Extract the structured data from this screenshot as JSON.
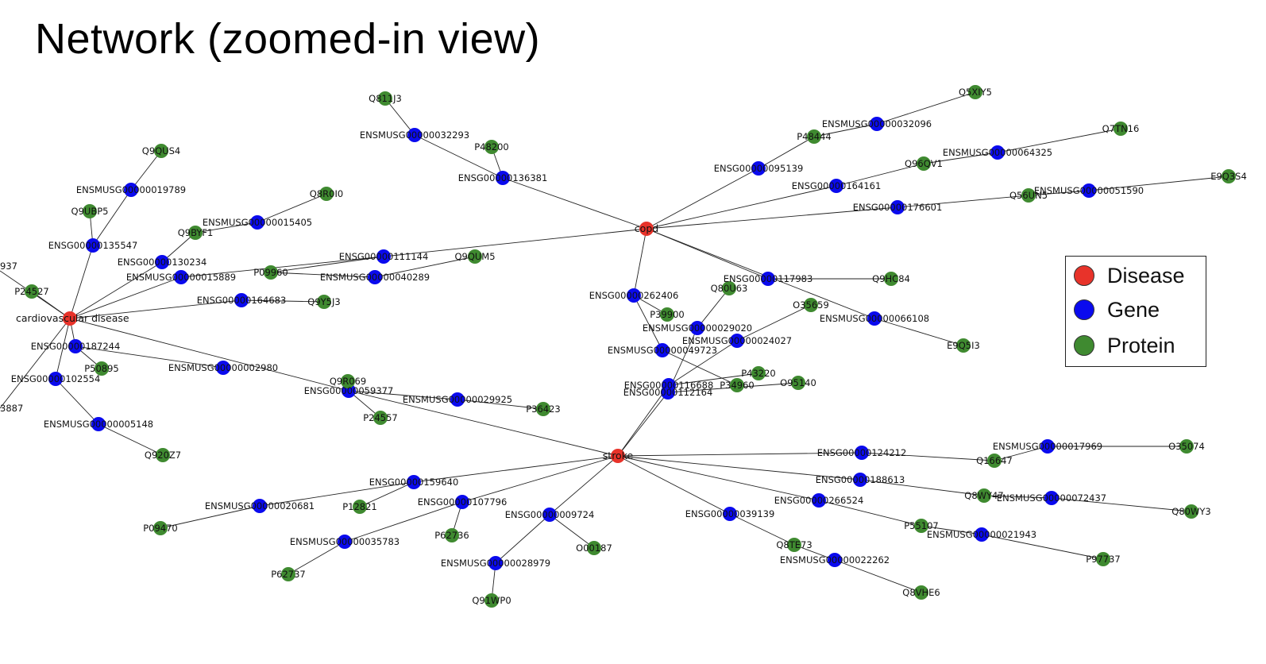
{
  "title": "Network (zoomed-in view)",
  "legend": {
    "items": [
      {
        "label": "Disease",
        "color": "#e8332a"
      },
      {
        "label": "Gene",
        "color": "#0a0aee"
      },
      {
        "label": "Protein",
        "color": "#3f8a30"
      }
    ]
  },
  "nodes": [
    {
      "id": "copd",
      "label": "copd",
      "type": "disease"
    },
    {
      "id": "stroke",
      "label": "stroke",
      "type": "disease"
    },
    {
      "id": "cvd",
      "label": "cardiovascular disease",
      "type": "disease"
    },
    {
      "id": "g_136381",
      "label": "ENSG00000136381",
      "type": "gene"
    },
    {
      "id": "g_m32293",
      "label": "ENSMUSG00000032293",
      "type": "gene"
    },
    {
      "id": "p_Q811J3",
      "label": "Q811J3",
      "type": "protein"
    },
    {
      "id": "p_P48200",
      "label": "P48200",
      "type": "protein"
    },
    {
      "id": "g_95139",
      "label": "ENSG00000095139",
      "type": "gene"
    },
    {
      "id": "g_m32096",
      "label": "ENSMUSG00000032096",
      "type": "gene"
    },
    {
      "id": "p_P48444",
      "label": "P48444",
      "type": "protein"
    },
    {
      "id": "p_Q5XIY5",
      "label": "Q5XIY5",
      "type": "protein"
    },
    {
      "id": "g_164161",
      "label": "ENSG00000164161",
      "type": "gene"
    },
    {
      "id": "p_Q96QV1",
      "label": "Q96QV1",
      "type": "protein"
    },
    {
      "id": "g_m64325",
      "label": "ENSMUSG00000064325",
      "type": "gene"
    },
    {
      "id": "p_Q7TN16",
      "label": "Q7TN16",
      "type": "protein"
    },
    {
      "id": "g_176601",
      "label": "ENSG00000176601",
      "type": "gene"
    },
    {
      "id": "p_Q56UN5",
      "label": "Q56UN5",
      "type": "protein"
    },
    {
      "id": "g_m51590",
      "label": "ENSMUSG00000051590",
      "type": "gene"
    },
    {
      "id": "p_E9Q3S4",
      "label": "E9Q3S4",
      "type": "protein"
    },
    {
      "id": "g_111144",
      "label": "ENSG00000111144",
      "type": "gene"
    },
    {
      "id": "g_m40289",
      "label": "ENSMUSG00000040289",
      "type": "gene"
    },
    {
      "id": "p_Q9QUM5",
      "label": "Q9QUM5",
      "type": "protein"
    },
    {
      "id": "p_P09960",
      "label": "P09960",
      "type": "protein"
    },
    {
      "id": "g_117983",
      "label": "ENSG00000117983",
      "type": "gene"
    },
    {
      "id": "p_Q9HC84",
      "label": "Q9HC84",
      "type": "protein"
    },
    {
      "id": "g_m66108",
      "label": "ENSMUSG00000066108",
      "type": "gene"
    },
    {
      "id": "p_E9Q5I3",
      "label": "E9Q5I3",
      "type": "protein"
    },
    {
      "id": "g_262406",
      "label": "ENSG00000262406",
      "type": "gene"
    },
    {
      "id": "p_P39900",
      "label": "P39900",
      "type": "protein"
    },
    {
      "id": "g_m49723",
      "label": "ENSMUSG00000049723",
      "type": "gene"
    },
    {
      "id": "g_m29020",
      "label": "ENSMUSG00000029020",
      "type": "gene"
    },
    {
      "id": "p_Q80U63",
      "label": "Q80U63",
      "type": "protein"
    },
    {
      "id": "g_m24027",
      "label": "ENSMUSG00000024027",
      "type": "gene"
    },
    {
      "id": "p_O35659",
      "label": "O35659",
      "type": "protein"
    },
    {
      "id": "g_116688",
      "label": "ENSG00000116688",
      "type": "gene"
    },
    {
      "id": "g_112164",
      "label": "ENSG00000112164",
      "type": "gene"
    },
    {
      "id": "p_P34960",
      "label": "P34960",
      "type": "protein"
    },
    {
      "id": "p_P43220",
      "label": "P43220",
      "type": "protein"
    },
    {
      "id": "p_O95140",
      "label": "O95140",
      "type": "protein"
    },
    {
      "id": "g_124212",
      "label": "ENSG00000124212",
      "type": "gene"
    },
    {
      "id": "p_Q16647",
      "label": "Q16647",
      "type": "protein"
    },
    {
      "id": "g_m17969",
      "label": "ENSMUSG00000017969",
      "type": "gene"
    },
    {
      "id": "p_O35074",
      "label": "O35074",
      "type": "protein"
    },
    {
      "id": "g_188613",
      "label": "ENSG00000188613",
      "type": "gene"
    },
    {
      "id": "p_Q8WY47",
      "label": "Q8WY47",
      "type": "protein"
    },
    {
      "id": "g_m72437",
      "label": "ENSMUSG00000072437",
      "type": "gene"
    },
    {
      "id": "p_Q80WY3",
      "label": "Q80WY3",
      "type": "protein"
    },
    {
      "id": "g_266524",
      "label": "ENSG00000266524",
      "type": "gene"
    },
    {
      "id": "p_P55107",
      "label": "P55107",
      "type": "protein"
    },
    {
      "id": "g_m21943",
      "label": "ENSMUSG00000021943",
      "type": "gene"
    },
    {
      "id": "p_P97737",
      "label": "P97737",
      "type": "protein"
    },
    {
      "id": "g_39139",
      "label": "ENSG00000039139",
      "type": "gene"
    },
    {
      "id": "p_Q8TE73",
      "label": "Q8TE73",
      "type": "protein"
    },
    {
      "id": "g_m22262",
      "label": "ENSMUSG00000022262",
      "type": "gene"
    },
    {
      "id": "p_Q8VHE6",
      "label": "Q8VHE6",
      "type": "protein"
    },
    {
      "id": "g_9724",
      "label": "ENSG00000009724",
      "type": "gene"
    },
    {
      "id": "p_O00187",
      "label": "O00187",
      "type": "protein"
    },
    {
      "id": "g_m28979",
      "label": "ENSMUSG00000028979",
      "type": "gene"
    },
    {
      "id": "p_Q91WP0",
      "label": "Q91WP0",
      "type": "protein"
    },
    {
      "id": "g_107796",
      "label": "ENSG00000107796",
      "type": "gene"
    },
    {
      "id": "p_P62736",
      "label": "P62736",
      "type": "protein"
    },
    {
      "id": "g_m35783",
      "label": "ENSMUSG00000035783",
      "type": "gene"
    },
    {
      "id": "p_P62737",
      "label": "P62737",
      "type": "protein"
    },
    {
      "id": "g_159640",
      "label": "ENSG00000159640",
      "type": "gene"
    },
    {
      "id": "p_P12821",
      "label": "P12821",
      "type": "protein"
    },
    {
      "id": "g_m20681",
      "label": "ENSMUSG00000020681",
      "type": "gene"
    },
    {
      "id": "p_P09470",
      "label": "P09470",
      "type": "protein"
    },
    {
      "id": "g_59377",
      "label": "ENSG00000059377",
      "type": "gene"
    },
    {
      "id": "p_Q9R069",
      "label": "Q9R069",
      "type": "protein"
    },
    {
      "id": "p_P24557",
      "label": "P24557",
      "type": "protein"
    },
    {
      "id": "g_m29925",
      "label": "ENSMUSG00000029925",
      "type": "gene"
    },
    {
      "id": "p_P36423",
      "label": "P36423",
      "type": "protein"
    },
    {
      "id": "g_135547",
      "label": "ENSG00000135547",
      "type": "gene"
    },
    {
      "id": "p_Q9UBP5",
      "label": "Q9UBP5",
      "type": "protein"
    },
    {
      "id": "g_m19789",
      "label": "ENSMUSG00000019789",
      "type": "gene"
    },
    {
      "id": "p_Q9QUS4",
      "label": "Q9QUS4",
      "type": "protein"
    },
    {
      "id": "g_130234",
      "label": "ENSG00000130234",
      "type": "gene"
    },
    {
      "id": "p_Q9BYF1",
      "label": "Q9BYF1",
      "type": "protein"
    },
    {
      "id": "g_m15405",
      "label": "ENSMUSG00000015405",
      "type": "gene"
    },
    {
      "id": "p_Q8R0I0",
      "label": "Q8R0I0",
      "type": "protein"
    },
    {
      "id": "g_m15889",
      "label": "ENSMUSG00000015889",
      "type": "gene"
    },
    {
      "id": "g_164683",
      "label": "ENSG00000164683",
      "type": "gene"
    },
    {
      "id": "p_Q9Y5J3",
      "label": "Q9Y5J3",
      "type": "protein"
    },
    {
      "id": "p_P24527",
      "label": "P24527",
      "type": "protein"
    },
    {
      "id": "g_187244",
      "label": "ENSG00000187244",
      "type": "gene"
    },
    {
      "id": "p_P50895",
      "label": "P50895",
      "type": "protein"
    },
    {
      "id": "g_m02980",
      "label": "ENSMUSG00000002980",
      "type": "gene"
    },
    {
      "id": "g_102554",
      "label": "ENSG00000102554",
      "type": "gene"
    },
    {
      "id": "g_m05148",
      "label": "ENSMUSG00000005148",
      "type": "gene"
    },
    {
      "id": "p_Q920Z7",
      "label": "Q920Z7",
      "type": "protein"
    },
    {
      "id": "edge_937",
      "label": "937",
      "type": "fragment"
    },
    {
      "id": "edge_3887",
      "label": "3887",
      "type": "fragment"
    }
  ],
  "edges": [
    [
      "copd",
      "g_136381"
    ],
    [
      "g_136381",
      "g_m32293"
    ],
    [
      "g_m32293",
      "p_Q811J3"
    ],
    [
      "g_136381",
      "p_P48200"
    ],
    [
      "copd",
      "g_95139"
    ],
    [
      "g_95139",
      "p_P48444"
    ],
    [
      "p_P48444",
      "g_m32096"
    ],
    [
      "g_m32096",
      "p_Q5XIY5"
    ],
    [
      "copd",
      "g_164161"
    ],
    [
      "g_164161",
      "p_Q96QV1"
    ],
    [
      "p_Q96QV1",
      "g_m64325"
    ],
    [
      "g_m64325",
      "p_Q7TN16"
    ],
    [
      "copd",
      "g_176601"
    ],
    [
      "g_176601",
      "p_Q56UN5"
    ],
    [
      "p_Q56UN5",
      "g_m51590"
    ],
    [
      "g_m51590",
      "p_E9Q3S4"
    ],
    [
      "copd",
      "g_111144"
    ],
    [
      "g_111144",
      "p_P09960"
    ],
    [
      "p_P09960",
      "g_m40289"
    ],
    [
      "g_m40289",
      "p_Q9QUM5"
    ],
    [
      "copd",
      "g_117983"
    ],
    [
      "g_117983",
      "p_Q9HC84"
    ],
    [
      "copd",
      "g_m66108"
    ],
    [
      "g_m66108",
      "p_E9Q5I3"
    ],
    [
      "copd",
      "g_262406"
    ],
    [
      "g_262406",
      "p_P39900"
    ],
    [
      "g_262406",
      "g_m49723"
    ],
    [
      "g_m49723",
      "p_P34960"
    ],
    [
      "g_m29020",
      "p_Q80U63"
    ],
    [
      "g_m29020",
      "g_112164"
    ],
    [
      "stroke",
      "g_112164"
    ],
    [
      "stroke",
      "g_116688"
    ],
    [
      "g_116688",
      "g_m24027"
    ],
    [
      "g_m24027",
      "p_O35659"
    ],
    [
      "g_112164",
      "p_O95140"
    ],
    [
      "g_116688",
      "p_P43220"
    ],
    [
      "stroke",
      "g_124212"
    ],
    [
      "g_124212",
      "p_Q16647"
    ],
    [
      "p_Q16647",
      "g_m17969"
    ],
    [
      "g_m17969",
      "p_O35074"
    ],
    [
      "stroke",
      "g_188613"
    ],
    [
      "g_188613",
      "p_Q8WY47"
    ],
    [
      "p_Q8WY47",
      "g_m72437"
    ],
    [
      "g_m72437",
      "p_Q80WY3"
    ],
    [
      "stroke",
      "g_266524"
    ],
    [
      "g_266524",
      "p_P55107"
    ],
    [
      "p_P55107",
      "g_m21943"
    ],
    [
      "g_m21943",
      "p_P97737"
    ],
    [
      "stroke",
      "g_39139"
    ],
    [
      "g_39139",
      "p_Q8TE73"
    ],
    [
      "p_Q8TE73",
      "g_m22262"
    ],
    [
      "g_m22262",
      "p_Q8VHE6"
    ],
    [
      "stroke",
      "g_9724"
    ],
    [
      "g_9724",
      "p_O00187"
    ],
    [
      "g_9724",
      "g_m28979"
    ],
    [
      "g_m28979",
      "p_Q91WP0"
    ],
    [
      "stroke",
      "g_107796"
    ],
    [
      "g_107796",
      "p_P62736"
    ],
    [
      "g_107796",
      "g_m35783"
    ],
    [
      "g_m35783",
      "p_P62737"
    ],
    [
      "stroke",
      "g_159640"
    ],
    [
      "g_159640",
      "p_P12821"
    ],
    [
      "g_159640",
      "g_m20681"
    ],
    [
      "g_m20681",
      "p_P09470"
    ],
    [
      "stroke",
      "g_59377"
    ],
    [
      "g_59377",
      "p_Q9R069"
    ],
    [
      "g_59377",
      "p_P24557"
    ],
    [
      "g_59377",
      "g_m29925"
    ],
    [
      "g_m29925",
      "p_P36423"
    ],
    [
      "cvd",
      "g_59377"
    ],
    [
      "cvd",
      "g_135547"
    ],
    [
      "g_135547",
      "p_Q9UBP5"
    ],
    [
      "g_135547",
      "g_m19789"
    ],
    [
      "g_m19789",
      "p_Q9QUS4"
    ],
    [
      "cvd",
      "g_130234"
    ],
    [
      "g_130234",
      "p_Q9BYF1"
    ],
    [
      "p_Q9BYF1",
      "g_m15405"
    ],
    [
      "g_m15405",
      "p_Q8R0I0"
    ],
    [
      "cvd",
      "g_m15889"
    ],
    [
      "g_m15889",
      "g_111144"
    ],
    [
      "cvd",
      "g_164683"
    ],
    [
      "g_164683",
      "p_Q9Y5J3"
    ],
    [
      "cvd",
      "p_P24527"
    ],
    [
      "cvd",
      "g_187244"
    ],
    [
      "g_187244",
      "p_P50895"
    ],
    [
      "g_187244",
      "g_m02980"
    ],
    [
      "cvd",
      "g_102554"
    ],
    [
      "g_102554",
      "g_m05148"
    ],
    [
      "g_m05148",
      "p_Q920Z7"
    ],
    [
      "cvd",
      "edge_937"
    ],
    [
      "cvd",
      "edge_3887"
    ]
  ]
}
